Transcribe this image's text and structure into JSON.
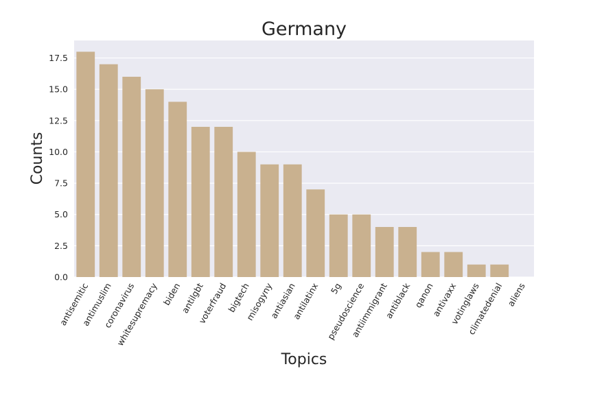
{
  "chart_data": {
    "type": "bar",
    "title": "Germany",
    "xlabel": "Topics",
    "ylabel": "Counts",
    "categories": [
      "antisemitic",
      "antimuslim",
      "coronavirus",
      "whitesupremacy",
      "biden",
      "antilgbt",
      "voterfraud",
      "bigtech",
      "misogyny",
      "antiasian",
      "antilatinx",
      "5g",
      "pseudoscience",
      "antiimmigrant",
      "antiblack",
      "qanon",
      "antivaxx",
      "votinglaws",
      "climatedenial",
      "aliens"
    ],
    "values": [
      18,
      17,
      16,
      15,
      14,
      12,
      12,
      10,
      9,
      9,
      7,
      5,
      5,
      4,
      4,
      2,
      2,
      1,
      1,
      0
    ],
    "ylim": [
      0,
      18.9
    ],
    "yticks": [
      "0.0",
      "2.5",
      "5.0",
      "7.5",
      "10.0",
      "12.5",
      "15.0",
      "17.5"
    ],
    "grid": true,
    "bar_color": "#c9b18f",
    "background_color": "#eaeaf2"
  }
}
